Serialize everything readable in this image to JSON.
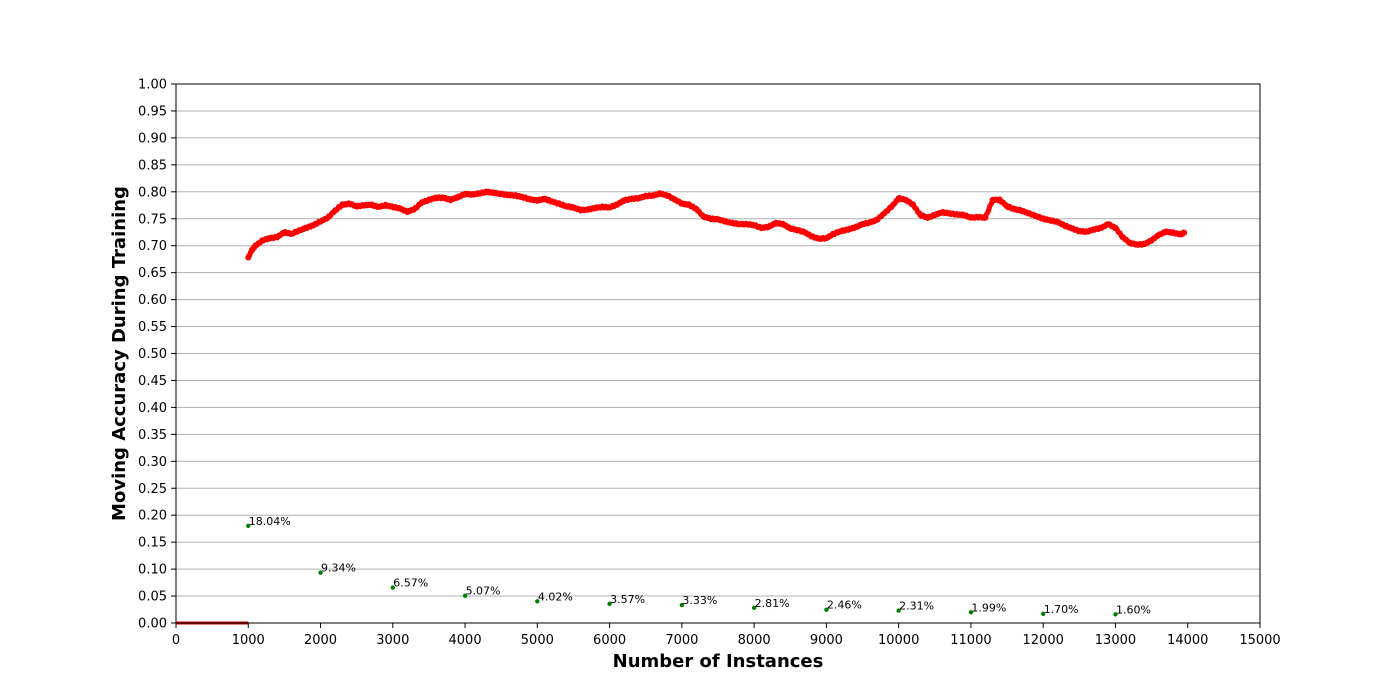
{
  "chart_data": {
    "type": "line",
    "xlabel": "Number of Instances",
    "ylabel": "Moving Accuracy During Training",
    "xlim": [
      0,
      15000
    ],
    "ylim": [
      0.0,
      1.0
    ],
    "x_ticks": [
      0,
      1000,
      2000,
      3000,
      4000,
      5000,
      6000,
      7000,
      8000,
      9000,
      10000,
      11000,
      12000,
      13000,
      14000,
      15000
    ],
    "y_ticks": [
      "0.00",
      "0.05",
      "0.10",
      "0.15",
      "0.20",
      "0.25",
      "0.30",
      "0.35",
      "0.40",
      "0.45",
      "0.50",
      "0.55",
      "0.60",
      "0.65",
      "0.70",
      "0.75",
      "0.80",
      "0.85",
      "0.90",
      "0.95",
      "1.00"
    ],
    "grid": "horizontal",
    "colors": {
      "accuracy": "#ff0000",
      "annotations": "#008000",
      "baseline": "#cc0000",
      "grid": "#b0b0b0"
    },
    "series": [
      {
        "values_x": [
          1000,
          1050,
          1100,
          1200,
          1300,
          1400,
          1500,
          1600,
          1700,
          1800,
          1900,
          2000,
          2100,
          2200,
          2300,
          2400,
          2500,
          2600,
          2700,
          2800,
          2900,
          3000,
          3100,
          3200,
          3300,
          3400,
          3500,
          3600,
          3700,
          3800,
          3900,
          4000,
          4100,
          4200,
          4300,
          4400,
          4500,
          4600,
          4700,
          4800,
          4900,
          5000,
          5100,
          5200,
          5300,
          5400,
          5500,
          5600,
          5700,
          5800,
          5900,
          6000,
          6100,
          6200,
          6300,
          6400,
          6500,
          6600,
          6700,
          6800,
          6900,
          7000,
          7100,
          7200,
          7300,
          7400,
          7500,
          7600,
          7700,
          7800,
          7900,
          8000,
          8100,
          8200,
          8300,
          8400,
          8500,
          8600,
          8700,
          8800,
          8900,
          9000,
          9100,
          9200,
          9300,
          9400,
          9500,
          9600,
          9700,
          9800,
          9900,
          10000,
          10100,
          10200,
          10300,
          10400,
          10500,
          10600,
          10700,
          10800,
          10900,
          11000,
          11100,
          11200,
          11300,
          11400,
          11500,
          11600,
          11700,
          11800,
          11900,
          12000,
          12100,
          12200,
          12300,
          12400,
          12500,
          12600,
          12700,
          12800,
          12900,
          13000,
          13100,
          13200,
          13300,
          13400,
          13500,
          13600,
          13700,
          13800,
          13900,
          13950
        ],
        "values_y": [
          0.678,
          0.692,
          0.7,
          0.71,
          0.714,
          0.716,
          0.725,
          0.722,
          0.728,
          0.733,
          0.738,
          0.745,
          0.752,
          0.765,
          0.776,
          0.778,
          0.773,
          0.775,
          0.776,
          0.772,
          0.775,
          0.772,
          0.769,
          0.763,
          0.768,
          0.78,
          0.785,
          0.789,
          0.789,
          0.785,
          0.79,
          0.796,
          0.795,
          0.797,
          0.8,
          0.798,
          0.796,
          0.794,
          0.793,
          0.79,
          0.786,
          0.784,
          0.787,
          0.782,
          0.778,
          0.773,
          0.771,
          0.766,
          0.767,
          0.77,
          0.772,
          0.771,
          0.776,
          0.784,
          0.787,
          0.788,
          0.792,
          0.793,
          0.797,
          0.793,
          0.786,
          0.778,
          0.776,
          0.768,
          0.754,
          0.75,
          0.749,
          0.745,
          0.742,
          0.74,
          0.74,
          0.738,
          0.733,
          0.735,
          0.742,
          0.74,
          0.732,
          0.729,
          0.725,
          0.717,
          0.713,
          0.714,
          0.722,
          0.727,
          0.73,
          0.734,
          0.74,
          0.743,
          0.748,
          0.76,
          0.772,
          0.788,
          0.785,
          0.776,
          0.757,
          0.752,
          0.757,
          0.762,
          0.76,
          0.758,
          0.757,
          0.752,
          0.753,
          0.752,
          0.785,
          0.785,
          0.773,
          0.768,
          0.765,
          0.76,
          0.755,
          0.75,
          0.747,
          0.744,
          0.737,
          0.732,
          0.727,
          0.726,
          0.73,
          0.733,
          0.74,
          0.733,
          0.716,
          0.705,
          0.702,
          0.703,
          0.71,
          0.72,
          0.726,
          0.724,
          0.721,
          0.724
        ]
      }
    ],
    "annotations": [
      {
        "x": 1000,
        "y": 0.1804,
        "label": "18.04%"
      },
      {
        "x": 2000,
        "y": 0.0934,
        "label": "9.34%"
      },
      {
        "x": 3000,
        "y": 0.0657,
        "label": "6.57%"
      },
      {
        "x": 4000,
        "y": 0.0507,
        "label": "5.07%"
      },
      {
        "x": 5000,
        "y": 0.0402,
        "label": "4.02%"
      },
      {
        "x": 6000,
        "y": 0.0357,
        "label": "3.57%"
      },
      {
        "x": 7000,
        "y": 0.0333,
        "label": "3.33%"
      },
      {
        "x": 8000,
        "y": 0.0281,
        "label": "2.81%"
      },
      {
        "x": 9000,
        "y": 0.0246,
        "label": "2.46%"
      },
      {
        "x": 10000,
        "y": 0.0231,
        "label": "2.31%"
      },
      {
        "x": 11000,
        "y": 0.0199,
        "label": "1.99%"
      },
      {
        "x": 12000,
        "y": 0.017,
        "label": "1.70%"
      },
      {
        "x": 13000,
        "y": 0.016,
        "label": "1.60%"
      }
    ],
    "baseline": {
      "x": [
        0,
        1000
      ],
      "y": 0.0
    }
  }
}
